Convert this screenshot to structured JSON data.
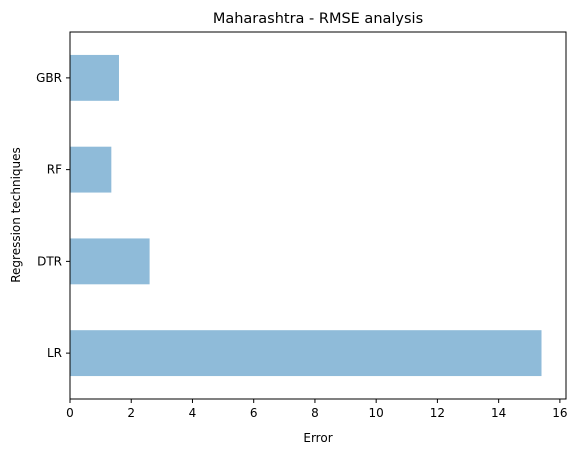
{
  "chart_data": {
    "type": "bar",
    "orientation": "horizontal",
    "title": "Maharashtra - RMSE analysis",
    "xlabel": "Error",
    "ylabel": "Regression techniques",
    "categories": [
      "LR",
      "DTR",
      "RF",
      "GBR"
    ],
    "values": [
      15.4,
      2.6,
      1.35,
      1.6
    ],
    "xlim": [
      0,
      16.2
    ],
    "xticks": [
      "0",
      "2",
      "4",
      "6",
      "8",
      "10",
      "12",
      "14",
      "16"
    ],
    "grid": false,
    "bar_color": "#8fbbd9"
  }
}
